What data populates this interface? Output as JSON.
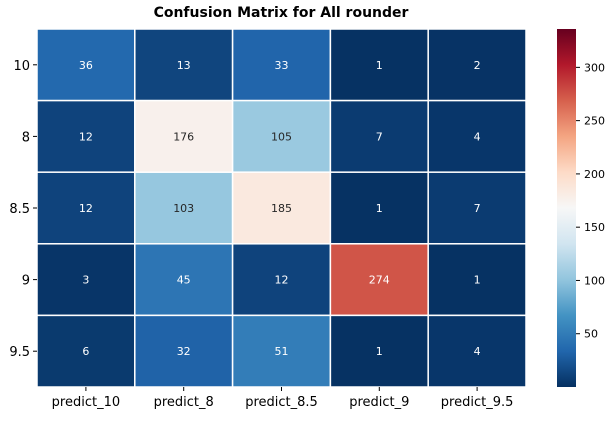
{
  "chart_data": {
    "type": "heatmap",
    "title": "Confusion Matrix for All rounder",
    "x_categories": [
      "predict_10",
      "predict_8",
      "predict_8.5",
      "predict_9",
      "predict_9.5"
    ],
    "y_categories": [
      "10",
      "8",
      "8.5",
      "9",
      "9.5"
    ],
    "values": [
      [
        36,
        13,
        33,
        1,
        2
      ],
      [
        12,
        176,
        105,
        7,
        4
      ],
      [
        12,
        103,
        185,
        1,
        7
      ],
      [
        3,
        45,
        12,
        274,
        1
      ],
      [
        6,
        32,
        51,
        1,
        4
      ]
    ],
    "colorbar": {
      "min": 0,
      "max": 336,
      "ticks": [
        50,
        100,
        150,
        200,
        250,
        300
      ],
      "colormap": "RdBu_r",
      "stops": [
        "#053061",
        "#2166ac",
        "#4393c3",
        "#92c5de",
        "#d1e5f0",
        "#f7f7f7",
        "#fddbc7",
        "#f4a582",
        "#d6604d",
        "#b2182b",
        "#67001f"
      ]
    },
    "grid_line_color": "#ffffff",
    "annotations": true
  }
}
